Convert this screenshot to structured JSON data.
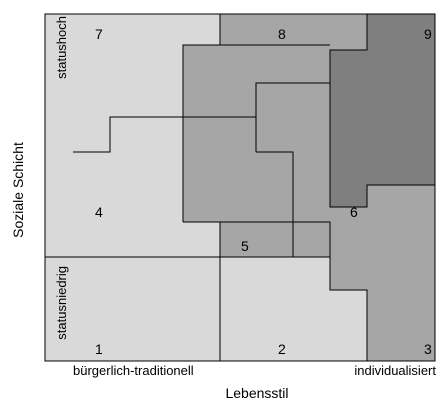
{
  "diagram": {
    "x_axis_title": "Lebensstil",
    "y_axis_title": "Soziale Schicht",
    "x_tick_left": "bürgerlich-traditionell",
    "x_tick_right": "individualisiert",
    "y_tick_top": "statushoch",
    "y_tick_bottom": "statusniedrig",
    "cell_numbers": [
      "1",
      "2",
      "3",
      "4",
      "5",
      "6",
      "7",
      "8",
      "9"
    ],
    "colors": {
      "light": "#d9d9d9",
      "medium": "#a6a6a6",
      "dark": "#7f7f7f",
      "outline": "#000000"
    }
  }
}
